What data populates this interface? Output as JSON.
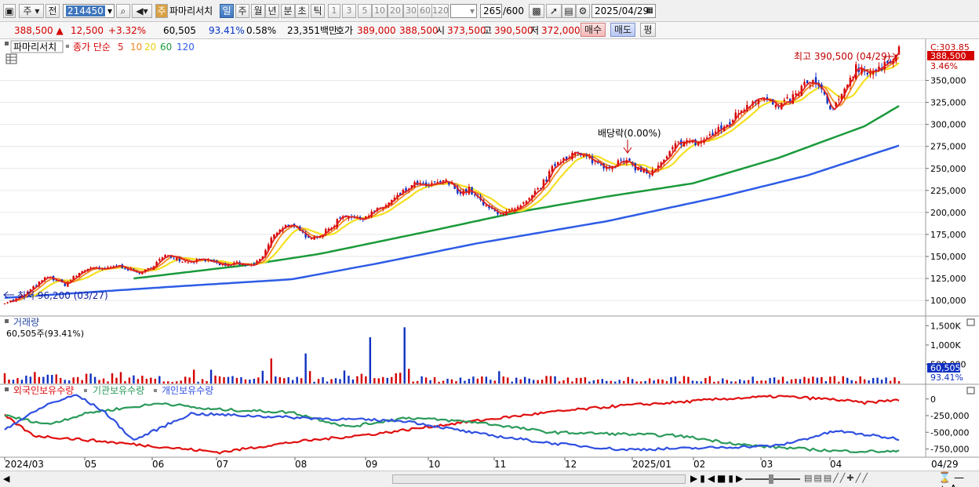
{
  "toolbar": {
    "market": "주",
    "prev": "전",
    "code": "214450",
    "stock_icon": "주",
    "name": "파마리서치",
    "periods": [
      "일",
      "주",
      "월",
      "년",
      "분",
      "초",
      "틱"
    ],
    "active_period": "일",
    "intervals": [
      "1",
      "3",
      "5",
      "10",
      "20",
      "30",
      "60",
      "120"
    ],
    "count": "265",
    "count_max": "/600",
    "date": "2025/04/29"
  },
  "quote": {
    "price": "388,500",
    "change": "12,500",
    "change_pct": "+3.32%",
    "volume": "60,505",
    "vol_ratio": "93.41%",
    "turnover": "0.58%",
    "amount": "23,351백만",
    "ask_label": "호가",
    "ask": "389,000",
    "bid": "388,500",
    "open_label": "시",
    "open": "373,500",
    "high_label": "고",
    "high": "390,500",
    "low_label": "저",
    "low": "372,000",
    "buy": "매수",
    "sell": "매도",
    "eval": "평"
  },
  "legend": {
    "name": "파마리서치",
    "ma_label": "종가 단순",
    "ma_periods": [
      "5",
      "10",
      "20",
      "60",
      "120"
    ],
    "volume_title": "거래량",
    "volume_value": "60,505주(93.41%)",
    "holders": [
      "외국인보유수량",
      "기관보유수량",
      "개인보유수량"
    ]
  },
  "colors": {
    "up": "#d40000",
    "down": "#1030c0",
    "ma5": "#e02020",
    "ma10": "#f08a20",
    "ma20": "#f5e020",
    "ma60": "#1a9a3a",
    "ma120": "#2e5ce6",
    "foreign": "#e01010",
    "institution": "#2a9a5a",
    "individual": "#3050e0"
  },
  "chart_data": [
    {
      "type": "candlestick",
      "title": "파마리서치",
      "x_tick_labels": [
        "2024/03",
        "05",
        "06",
        "07",
        "08",
        "09",
        "10",
        "11",
        "12",
        "2025/01",
        "02",
        "03",
        "04"
      ],
      "y_tick_labels": [
        "100,000",
        "125,000",
        "150,000",
        "175,000",
        "200,000",
        "225,000",
        "250,000",
        "275,000",
        "300,000",
        "325,000",
        "350,000"
      ],
      "ylim": [
        85000,
        395000
      ],
      "price_path": [
        [
          0,
          98000
        ],
        [
          6,
          100000
        ],
        [
          12,
          105000
        ],
        [
          18,
          112000
        ],
        [
          24,
          120000
        ],
        [
          30,
          127000
        ],
        [
          36,
          123000
        ],
        [
          42,
          118000
        ],
        [
          48,
          126000
        ],
        [
          54,
          133000
        ],
        [
          60,
          138000
        ],
        [
          66,
          135000
        ],
        [
          72,
          136000
        ],
        [
          78,
          140000
        ],
        [
          84,
          137000
        ],
        [
          90,
          133000
        ],
        [
          96,
          131000
        ],
        [
          102,
          138000
        ],
        [
          108,
          146000
        ],
        [
          114,
          152000
        ],
        [
          120,
          148000
        ],
        [
          126,
          144000
        ],
        [
          132,
          145000
        ],
        [
          138,
          148000
        ],
        [
          144,
          143000
        ],
        [
          150,
          141000
        ],
        [
          156,
          140000
        ],
        [
          162,
          143000
        ],
        [
          168,
          139000
        ],
        [
          174,
          141000
        ],
        [
          180,
          150000
        ],
        [
          186,
          170000
        ],
        [
          192,
          182000
        ],
        [
          198,
          186000
        ],
        [
          204,
          180000
        ],
        [
          210,
          174000
        ],
        [
          216,
          172000
        ],
        [
          222,
          176000
        ],
        [
          228,
          183000
        ],
        [
          234,
          195000
        ],
        [
          240,
          197000
        ],
        [
          246,
          192000
        ],
        [
          252,
          196000
        ],
        [
          258,
          201000
        ],
        [
          264,
          206000
        ],
        [
          270,
          213000
        ],
        [
          276,
          220000
        ],
        [
          282,
          228000
        ],
        [
          288,
          233000
        ],
        [
          294,
          229000
        ],
        [
          300,
          232000
        ],
        [
          306,
          236000
        ],
        [
          312,
          231000
        ],
        [
          318,
          222000
        ],
        [
          324,
          226000
        ],
        [
          330,
          216000
        ],
        [
          336,
          206000
        ],
        [
          342,
          201000
        ],
        [
          348,
          200000
        ],
        [
          354,
          202000
        ],
        [
          360,
          206000
        ],
        [
          366,
          214000
        ],
        [
          372,
          226000
        ],
        [
          378,
          238000
        ],
        [
          384,
          255000
        ],
        [
          390,
          262000
        ],
        [
          396,
          268000
        ],
        [
          402,
          264000
        ],
        [
          408,
          261000
        ],
        [
          414,
          256000
        ],
        [
          420,
          252000
        ],
        [
          426,
          255000
        ],
        [
          432,
          259000
        ],
        [
          438,
          253000
        ],
        [
          444,
          248000
        ],
        [
          450,
          243000
        ],
        [
          456,
          251000
        ],
        [
          462,
          262000
        ],
        [
          468,
          276000
        ],
        [
          474,
          283000
        ],
        [
          480,
          278000
        ],
        [
          486,
          281000
        ],
        [
          492,
          287000
        ],
        [
          498,
          293000
        ],
        [
          504,
          299000
        ],
        [
          510,
          310000
        ],
        [
          516,
          320000
        ],
        [
          522,
          327000
        ],
        [
          528,
          333000
        ],
        [
          534,
          325000
        ],
        [
          540,
          318000
        ],
        [
          546,
          326000
        ],
        [
          552,
          333000
        ],
        [
          558,
          345000
        ],
        [
          564,
          348000
        ],
        [
          570,
          338000
        ],
        [
          576,
          316000
        ],
        [
          582,
          324000
        ],
        [
          588,
          348000
        ],
        [
          594,
          365000
        ],
        [
          600,
          362000
        ],
        [
          606,
          360000
        ],
        [
          612,
          362000
        ],
        [
          618,
          374000
        ],
        [
          624,
          388500
        ]
      ],
      "ma60_path": [
        [
          90,
          125000
        ],
        [
          168,
          140000
        ],
        [
          220,
          153000
        ],
        [
          300,
          180000
        ],
        [
          360,
          201000
        ],
        [
          420,
          218000
        ],
        [
          480,
          233000
        ],
        [
          540,
          262000
        ],
        [
          600,
          298000
        ],
        [
          624,
          321000
        ]
      ],
      "ma120_path": [
        [
          0,
          103000
        ],
        [
          120,
          116000
        ],
        [
          200,
          124000
        ],
        [
          260,
          142000
        ],
        [
          330,
          165000
        ],
        [
          420,
          190000
        ],
        [
          500,
          218000
        ],
        [
          560,
          242000
        ],
        [
          624,
          276000
        ]
      ],
      "annotations": [
        "최고 390,500 (04/29)",
        "최저 96,200 (03/27)",
        "배당락(0.00%)",
        "C:303.85",
        "388,500",
        "3.46%"
      ],
      "bar_count": 265,
      "bar_count_max": 600
    },
    {
      "type": "bar",
      "title": "거래량",
      "y_tick_labels": [
        "1,500K",
        "1,000K",
        "500,000"
      ],
      "ylim": [
        0,
        1650000
      ],
      "last_value": 60505,
      "last_value_label": "60,505",
      "last_ratio": "93.41%",
      "spikes": [
        [
          90,
          210000
        ],
        [
          180,
          330000
        ],
        [
          186,
          650000
        ],
        [
          210,
          780000
        ],
        [
          254,
          1200000
        ],
        [
          278,
          1460000
        ],
        [
          282,
          380000
        ],
        [
          344,
          320000
        ]
      ]
    },
    {
      "type": "line",
      "title": "외국인보유수량 / 기관보유수량 / 개인보유수량",
      "y_tick_labels": [
        "0",
        "-250,000",
        "-500,000",
        "-750,000"
      ],
      "ylim": [
        -850000,
        150000
      ],
      "series": [
        {
          "name": "외국인보유수량",
          "values": [
            [
              0,
              -250000
            ],
            [
              20,
              -550000
            ],
            [
              60,
              -620000
            ],
            [
              110,
              -720000
            ],
            [
              150,
              -800000
            ],
            [
              200,
              -650000
            ],
            [
              260,
              -520000
            ],
            [
              320,
              -350000
            ],
            [
              380,
              -200000
            ],
            [
              430,
              -100000
            ],
            [
              470,
              -50000
            ],
            [
              500,
              0
            ],
            [
              540,
              40000
            ],
            [
              580,
              -10000
            ],
            [
              600,
              -60000
            ],
            [
              624,
              -10000
            ]
          ]
        },
        {
          "name": "기관보유수량",
          "values": [
            [
              0,
              -250000
            ],
            [
              30,
              -380000
            ],
            [
              60,
              -200000
            ],
            [
              90,
              -120000
            ],
            [
              110,
              -60000
            ],
            [
              140,
              -150000
            ],
            [
              200,
              -200000
            ],
            [
              240,
              -420000
            ],
            [
              280,
              -280000
            ],
            [
              330,
              -350000
            ],
            [
              380,
              -500000
            ],
            [
              420,
              -520000
            ],
            [
              470,
              -550000
            ],
            [
              520,
              -700000
            ],
            [
              580,
              -780000
            ],
            [
              624,
              -790000
            ]
          ]
        },
        {
          "name": "개인보유수량",
          "values": [
            [
              0,
              -450000
            ],
            [
              30,
              -80000
            ],
            [
              50,
              60000
            ],
            [
              70,
              -200000
            ],
            [
              90,
              -620000
            ],
            [
              130,
              -220000
            ],
            [
              180,
              -260000
            ],
            [
              230,
              -300000
            ],
            [
              280,
              -330000
            ],
            [
              330,
              -520000
            ],
            [
              380,
              -660000
            ],
            [
              430,
              -760000
            ],
            [
              480,
              -740000
            ],
            [
              540,
              -700000
            ],
            [
              580,
              -480000
            ],
            [
              624,
              -600000
            ]
          ]
        }
      ]
    }
  ],
  "x_labels_right": "04/29"
}
